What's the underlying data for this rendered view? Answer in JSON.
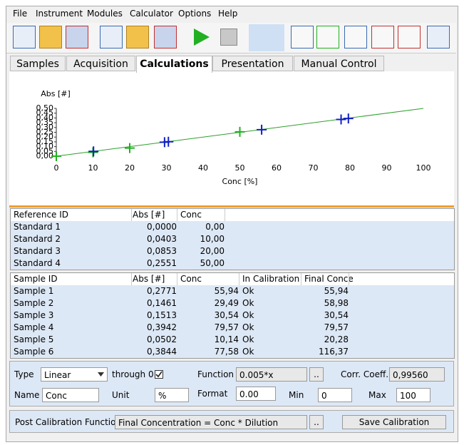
{
  "menu": [
    "File",
    "Instrument",
    "Modules",
    "Calculator",
    "Options",
    "Help"
  ],
  "tabs": [
    "Samples",
    "Acquisition",
    "Calculations",
    "Presentation",
    "Manual Control"
  ],
  "active_tab": 2,
  "chart": {
    "type": "scatter",
    "y_label": "Abs [#]",
    "x_label": "Conc [%]",
    "xlim": [
      0,
      100
    ],
    "ylim": [
      0,
      0.5
    ],
    "xticks": [
      0,
      10,
      20,
      30,
      40,
      50,
      60,
      70,
      80,
      90,
      100
    ],
    "yticks": [
      {
        "value": 0,
        "label": "0,00"
      },
      {
        "value": 0.05,
        "label": "0,05"
      },
      {
        "value": 0.1,
        "label": "0,10"
      },
      {
        "value": 0.15,
        "label": "0,15"
      },
      {
        "value": 0.2,
        "label": "0,20"
      },
      {
        "value": 0.25,
        "label": "0,25"
      },
      {
        "value": 0.3,
        "label": "0,30"
      },
      {
        "value": 0.35,
        "label": "0,35"
      },
      {
        "value": 0.4,
        "label": "0,40"
      },
      {
        "value": 0.45,
        "label": "0,45"
      },
      {
        "value": 0.5,
        "label": "0,50"
      }
    ],
    "fit": {
      "color": "#2ca02c",
      "x": [
        0,
        100
      ],
      "y": [
        0,
        0.5
      ]
    },
    "standards": {
      "color": "#22b022",
      "x": [
        0,
        10,
        20,
        50
      ],
      "y": [
        0,
        0.0403,
        0.0853,
        0.2551
      ]
    },
    "samples": {
      "color": "#1020c0",
      "x": [
        55.94,
        29.49,
        30.54,
        79.57,
        10.14,
        77.58
      ],
      "y": [
        0.2771,
        0.1461,
        0.1513,
        0.3942,
        0.0502,
        0.3844
      ]
    }
  },
  "standards_table": {
    "columns": [
      "Reference ID",
      "Abs [#]",
      "Conc"
    ],
    "rows": [
      [
        "Standard 1",
        "0,0000",
        "0,00"
      ],
      [
        "Standard 2",
        "0,0403",
        "10,00"
      ],
      [
        "Standard 3",
        "0,0853",
        "20,00"
      ],
      [
        "Standard 4",
        "0,2551",
        "50,00"
      ]
    ]
  },
  "samples_table": {
    "columns": [
      "Sample ID",
      "Abs [#]",
      "Conc",
      "In Calibration",
      "Final Conce"
    ],
    "rows": [
      [
        "Sample 1",
        "0,2771",
        "55,94",
        "Ok",
        "55,94"
      ],
      [
        "Sample 2",
        "0,1461",
        "29,49",
        "Ok",
        "58,98"
      ],
      [
        "Sample 3",
        "0,1513",
        "30,54",
        "Ok",
        "30,54"
      ],
      [
        "Sample 4",
        "0,3942",
        "79,57",
        "Ok",
        "79,57"
      ],
      [
        "Sample 5",
        "0,0502",
        "10,14",
        "Ok",
        "20,28"
      ],
      [
        "Sample 6",
        "0,3844",
        "77,58",
        "Ok",
        "116,37"
      ]
    ]
  },
  "calibration": {
    "type_label": "Type",
    "type_value": "Linear",
    "through_zero_label": "through 0",
    "through_zero": true,
    "function_label": "Function",
    "function_value": "0.005*x",
    "function_button": "..",
    "corr_label": "Corr. Coeff.",
    "corr_value": "0,99560",
    "name_label": "Name",
    "name_value": "Conc",
    "unit_label": "Unit",
    "unit_value": "%",
    "format_label": "Format",
    "format_value": "0.00",
    "min_label": "Min",
    "min_value": "0",
    "max_label": "Max",
    "max_value": "100"
  },
  "post": {
    "label": "Post Calibration Function",
    "value": "Final Concentration = Conc * Dilution",
    "button": "..",
    "save": "Save Calibration"
  }
}
